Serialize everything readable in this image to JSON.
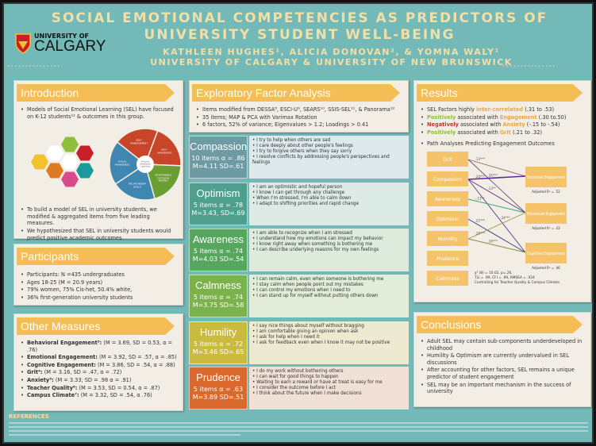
{
  "header": {
    "title_line1": "SOCIAL EMOTIONAL COMPETENCIES AS PREDICTORS OF",
    "title_line2": "UNIVERSITY STUDENT WELL-BEING",
    "authors": "KATHLEEN HUGHES¹, ALICIA DONOVAN², & YOMNA WALY¹",
    "affiliation": "UNIVERSITY OF CALGARY & UNIVERSITY OF NEW BRUNSWICK",
    "logo_top": "UNIVERSITY OF",
    "logo_bottom": "CALGARY"
  },
  "introduction": {
    "title": "Introduction",
    "bullets": [
      "Models of Social Emotional Learning (SEL) have focused on K-12 students¹² & outcomes in this group.",
      "To build a model of SEL in university students, we modified & aggregated items from five leading measures.",
      "We hypothesized that SEL in university students would predict positive academic outcomes."
    ],
    "wheel": {
      "center": "Social & Emotional Learning",
      "segments": [
        "SELF-MANAGEMENT",
        "SELF-AWARENESS",
        "RESPONSIBLE DECISION MAKING",
        "RELATIONSHIP SKILLS",
        "SOCIAL AWARENESS"
      ],
      "colors": [
        "#c8452a",
        "#c8452a",
        "#6a9e33",
        "#3f86b0",
        "#3f86b0"
      ]
    }
  },
  "participants": {
    "title": "Participants",
    "bullets": [
      "Participants: N =435 undergraduates",
      "Ages 18-25 (M = 20.9 years)",
      "79% women, 75% Cis-het, 50.4% white,",
      "36% first-generation university students"
    ]
  },
  "other_measures": {
    "title": "Other Measures",
    "items": [
      {
        "name": "Behavioral Engagement³:",
        "stats": "(M = 3.69, SD = 0.53, α = .76)"
      },
      {
        "name": "Emotional Engagement:",
        "stats": "(M = 3.92, SD = .57, α = .85)"
      },
      {
        "name": "Cognitive Engagement:",
        "stats": "(M = 3.86, SD = .54, α = .88)"
      },
      {
        "name": "Grit⁴:",
        "stats": "(M = 3.16, SD = .47, α = .72)"
      },
      {
        "name": "Anxiety⁵:",
        "stats": "(M = 3.33, SD = .98 α = .91)"
      },
      {
        "name": "Teacher Quality⁶:",
        "stats": "(M = 3.53, SD = 0.54, α = .87)"
      },
      {
        "name": "Campus Climate⁷:",
        "stats": "(M = 3.32, SD = .54, α .76)"
      }
    ]
  },
  "efa": {
    "title": "Exploratory Factor Analysis",
    "bullets": [
      "Items modified from DESSA⁸, ESCI-U⁹, SEARS¹⁰, SSIS-SEL¹¹, & Panorama¹²",
      "35 items; MAP & PCA with Varimax Rotation",
      "6 factors, 52% of variance; Eigenvalues > 1.2; Loadings > 0.41"
    ]
  },
  "factors": [
    {
      "name": "Compassion",
      "items_alpha": "10 items α = .86",
      "m_sd": "M=4.11 SD=.61",
      "color": "#6e9aa3",
      "panel": "#dde9ea",
      "items": [
        "I try to help when others are sad",
        "I care deeply about other people's feelings",
        "I try to forgive others when they say sorry",
        "I resolve conflicts by addressing people's perspectives and feelings"
      ]
    },
    {
      "name": "Optimism",
      "items_alpha": "5 items α = .78",
      "m_sd": "M=3.43, SD=.69",
      "color": "#4f9f8f",
      "panel": "#dcebe6",
      "items": [
        "I am an optimistic and hopeful person",
        "I know I can get through any challenge",
        "When I'm stressed, I'm able to calm down",
        "I adapt to shifting priorities and rapid change"
      ]
    },
    {
      "name": "Awareness",
      "items_alpha": "5 items α = .74",
      "m_sd": "M=4.03 SD=.54",
      "color": "#56a65e",
      "panel": "#dcebdc",
      "items": [
        "I am able to recognize when I am stressed",
        "I understand how my emotions can impact my behavior",
        "I know right away when something is bothering me",
        "I can describe underlying reasons for my own feelings"
      ]
    },
    {
      "name": "Calmness",
      "items_alpha": "5 items α = .74",
      "m_sd": "M=3.75 SD=.58",
      "color": "#7cb24c",
      "panel": "#e2ecd8",
      "items": [
        "I can remain calm, even when someone is bothering me",
        "I stay calm when people point out my mistakes",
        "I can control my emotions when I need to",
        "I can stand up for myself without putting others down"
      ]
    },
    {
      "name": "Humility",
      "items_alpha": "5 items α = .72",
      "m_sd": "M=3.46 SD=.65",
      "color": "#cbbb3c",
      "panel": "#eeead2",
      "items": [
        "I say nice things about myself without bragging",
        "I am comfortable giving an opinion when ask",
        "I ask for help when I need it",
        "I ask for feedback even when I know it may not be positive"
      ]
    },
    {
      "name": "Prudence",
      "items_alpha": "5 items α = .63",
      "m_sd": "M=3.89 SD=.51",
      "color": "#d9692c",
      "panel": "#f1e0d6",
      "items": [
        "I do my work without bothering others",
        "I can wait for good things to happen",
        "Waiting to earn a reward or have at treat is easy for me",
        "I consider the outcome before I act",
        "I think about the future when I make decisions"
      ]
    }
  ],
  "results": {
    "title": "Results",
    "bullets": [
      {
        "a": "SEL Factors highly ",
        "h": "inter-correlated",
        "hc": "o",
        "b": " (.31 to .53)"
      },
      {
        "a": "",
        "h": "Positively",
        "hc": "g",
        "b": " associated with ",
        "h2": "Engagement",
        "h2c": "o",
        "c": " (.30 to.50)"
      },
      {
        "a": "",
        "h": "Negatively",
        "hc": "r",
        "b": " associated with ",
        "h2": "Anxiety",
        "h2c": "o",
        "c": " (-.15 to -.54)"
      },
      {
        "a": "",
        "h": "Positively",
        "hc": "g",
        "b": " associated with ",
        "h2": "Grit",
        "h2c": "o",
        "c": " (.21 to .32)"
      }
    ],
    "path_title": "Path Analyses Predicting Engagement Outcomes",
    "predictors": [
      "Grit",
      "Compassion",
      "Awareness",
      "Optimism",
      "Humility",
      "Prudence",
      "Calmness"
    ],
    "outcomes": [
      {
        "name": "Emotional Engagement",
        "r2": "Adjusted R² = .52"
      },
      {
        "name": "Behavioural Engagement",
        "r2": "Adjusted R² = .43"
      },
      {
        "name": "Cognitive Engagement",
        "r2": "Adjusted R² = .46"
      }
    ],
    "paths": [
      {
        "from": 0,
        "to": 0,
        "label": ".13***",
        "color": "#8a6a4a"
      },
      {
        "from": 0,
        "to": 1,
        "label": ".26***",
        "color": "#6a4a7a"
      },
      {
        "from": 1,
        "to": 0,
        "label": ".20***",
        "color": "#5a2a9a"
      },
      {
        "from": 1,
        "to": 1,
        "label": ".13**",
        "color": "#5a3a8a"
      },
      {
        "from": 1,
        "to": 2,
        "label": ".24***",
        "color": "#5a3a8a"
      },
      {
        "from": 2,
        "to": 1,
        "label": "-.13**",
        "color": "#3aa06a"
      },
      {
        "from": 3,
        "to": 2,
        "label": ".22***",
        "color": "#2a3a7a"
      },
      {
        "from": 4,
        "to": 1,
        "label": ".26***",
        "color": "#9a9a4a"
      },
      {
        "from": 4,
        "to": 2,
        "label": ".18***",
        "color": "#8a8a3a"
      }
    ],
    "fit": [
      "χ² (8) = 10.02, p=.26,",
      "TLI = .99, CFI = .99, RMSEA = .024",
      "Controlling for Teacher Quality & Campus Climate"
    ]
  },
  "conclusions": {
    "title": "Conclusions",
    "bullets": [
      "Adult SEL may contain sub-components underdeveloped in childhood",
      "Humility & Optimism are currently undervalued in SEL discussions",
      "After accounting for other factors, SEL remains a unique predictor of student engagement",
      "SEL may be an important mechanism in the success of university"
    ]
  },
  "references": {
    "title": "REFERENCES"
  }
}
